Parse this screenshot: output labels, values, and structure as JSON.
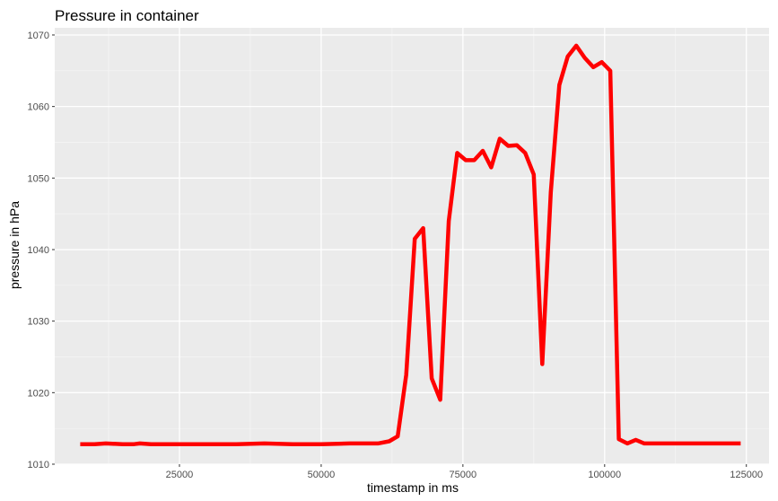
{
  "chart_data": {
    "type": "line",
    "title": "Pressure in container",
    "xlabel": "timestamp in ms",
    "ylabel": "pressure in hPa",
    "xlim": [
      3000,
      129000
    ],
    "ylim": [
      1010,
      1071
    ],
    "x_ticks": [
      25000,
      50000,
      75000,
      100000,
      125000
    ],
    "y_ticks": [
      1010,
      1020,
      1030,
      1040,
      1050,
      1060,
      1070
    ],
    "grid": true,
    "legend": "none",
    "series": [
      {
        "color": "#ff0000",
        "points": [
          [
            7500,
            1012.8
          ],
          [
            10000,
            1012.8
          ],
          [
            12000,
            1012.9
          ],
          [
            15000,
            1012.8
          ],
          [
            17000,
            1012.8
          ],
          [
            18000,
            1012.9
          ],
          [
            20000,
            1012.8
          ],
          [
            25000,
            1012.8
          ],
          [
            30000,
            1012.8
          ],
          [
            35000,
            1012.8
          ],
          [
            40000,
            1012.9
          ],
          [
            45000,
            1012.8
          ],
          [
            50000,
            1012.8
          ],
          [
            55000,
            1012.9
          ],
          [
            60000,
            1012.9
          ],
          [
            62000,
            1013.2
          ],
          [
            63500,
            1013.9
          ],
          [
            65000,
            1022.5
          ],
          [
            66500,
            1041.5
          ],
          [
            68000,
            1043.0
          ],
          [
            69500,
            1022.0
          ],
          [
            71000,
            1019.0
          ],
          [
            72500,
            1044.0
          ],
          [
            74000,
            1053.5
          ],
          [
            75500,
            1052.5
          ],
          [
            77000,
            1052.5
          ],
          [
            78500,
            1053.8
          ],
          [
            80000,
            1051.5
          ],
          [
            81500,
            1055.5
          ],
          [
            83000,
            1054.5
          ],
          [
            84500,
            1054.6
          ],
          [
            86000,
            1053.5
          ],
          [
            87500,
            1050.5
          ],
          [
            89000,
            1024.0
          ],
          [
            90500,
            1048.0
          ],
          [
            92000,
            1063.0
          ],
          [
            93500,
            1067.0
          ],
          [
            95000,
            1068.5
          ],
          [
            96500,
            1066.8
          ],
          [
            98000,
            1065.5
          ],
          [
            99500,
            1066.2
          ],
          [
            101000,
            1065.0
          ],
          [
            102500,
            1013.5
          ],
          [
            104000,
            1012.9
          ],
          [
            105500,
            1013.4
          ],
          [
            107000,
            1012.9
          ],
          [
            110000,
            1012.9
          ],
          [
            115000,
            1012.9
          ],
          [
            120000,
            1012.9
          ],
          [
            124000,
            1012.9
          ]
        ]
      }
    ]
  }
}
